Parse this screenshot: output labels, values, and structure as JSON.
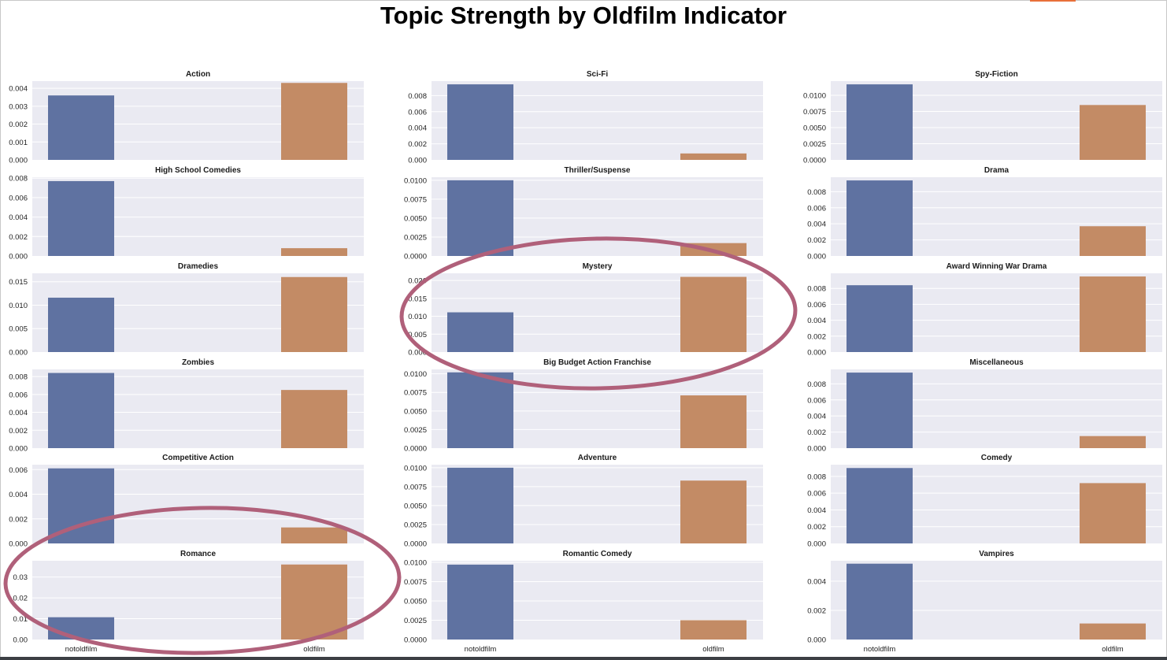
{
  "figure": {
    "title": "Topic Strength by Oldfilm Indicator"
  },
  "colors": {
    "notoldfilm": "#5f72a1",
    "oldfilm": "#c38b65",
    "panel_bg": "#eaeaf2",
    "grid": "#ffffff",
    "annotation_ring": "#b0607a",
    "accent": "#e8703a"
  },
  "chart_data": [
    {
      "type": "bar",
      "title": "Action",
      "categories": [
        "notoldfilm",
        "oldfilm"
      ],
      "values": [
        0.0036,
        0.0043
      ],
      "yticks": [
        "0.000",
        "0.001",
        "0.002",
        "0.003",
        "0.004"
      ],
      "ylim": [
        0,
        0.0044
      ],
      "grid": true
    },
    {
      "type": "bar",
      "title": "Sci-Fi",
      "categories": [
        "notoldfilm",
        "oldfilm"
      ],
      "values": [
        0.0094,
        0.0008
      ],
      "yticks": [
        "0.000",
        "0.002",
        "0.004",
        "0.006",
        "0.008"
      ],
      "ylim": [
        0,
        0.0098
      ],
      "grid": true
    },
    {
      "type": "bar",
      "title": "Spy-Fiction",
      "categories": [
        "notoldfilm",
        "oldfilm"
      ],
      "values": [
        0.0117,
        0.0085
      ],
      "yticks": [
        "0.0000",
        "0.0025",
        "0.0050",
        "0.0075",
        "0.0100"
      ],
      "ylim": [
        0,
        0.0122
      ],
      "grid": true
    },
    {
      "type": "bar",
      "title": "High School Comedies",
      "categories": [
        "notoldfilm",
        "oldfilm"
      ],
      "values": [
        0.0077,
        0.0008
      ],
      "yticks": [
        "0.000",
        "0.002",
        "0.004",
        "0.006",
        "0.008"
      ],
      "ylim": [
        0,
        0.0081
      ],
      "grid": true
    },
    {
      "type": "bar",
      "title": "Thriller/Suspense",
      "categories": [
        "notoldfilm",
        "oldfilm"
      ],
      "values": [
        0.01,
        0.0017
      ],
      "yticks": [
        "0.0000",
        "0.0025",
        "0.0050",
        "0.0075",
        "0.0100"
      ],
      "ylim": [
        0,
        0.0104
      ],
      "grid": true
    },
    {
      "type": "bar",
      "title": "Drama",
      "categories": [
        "notoldfilm",
        "oldfilm"
      ],
      "values": [
        0.0094,
        0.0037
      ],
      "yticks": [
        "0.000",
        "0.002",
        "0.004",
        "0.006",
        "0.008"
      ],
      "ylim": [
        0,
        0.0098
      ],
      "grid": true
    },
    {
      "type": "bar",
      "title": "Dramedies",
      "categories": [
        "notoldfilm",
        "oldfilm"
      ],
      "values": [
        0.0116,
        0.016
      ],
      "yticks": [
        "0.000",
        "0.005",
        "0.010",
        "0.015"
      ],
      "ylim": [
        0,
        0.0168
      ],
      "grid": true
    },
    {
      "type": "bar",
      "title": "Mystery",
      "categories": [
        "notoldfilm",
        "oldfilm"
      ],
      "values": [
        0.0111,
        0.021
      ],
      "yticks": [
        "0.000",
        "0.005",
        "0.010",
        "0.015",
        "0.020"
      ],
      "ylim": [
        0,
        0.022
      ],
      "grid": true
    },
    {
      "type": "bar",
      "title": "Award Winning War Drama",
      "categories": [
        "notoldfilm",
        "oldfilm"
      ],
      "values": [
        0.0084,
        0.0095
      ],
      "yticks": [
        "0.000",
        "0.002",
        "0.004",
        "0.006",
        "0.008"
      ],
      "ylim": [
        0,
        0.0099
      ],
      "grid": true
    },
    {
      "type": "bar",
      "title": "Zombies",
      "categories": [
        "notoldfilm",
        "oldfilm"
      ],
      "values": [
        0.0084,
        0.0065
      ],
      "yticks": [
        "0.000",
        "0.002",
        "0.004",
        "0.006",
        "0.008"
      ],
      "ylim": [
        0,
        0.0088
      ],
      "grid": true
    },
    {
      "type": "bar",
      "title": "Big Budget Action Franchise",
      "categories": [
        "notoldfilm",
        "oldfilm"
      ],
      "values": [
        0.0102,
        0.0071
      ],
      "yticks": [
        "0.0000",
        "0.0025",
        "0.0050",
        "0.0075",
        "0.0100"
      ],
      "ylim": [
        0,
        0.0106
      ],
      "grid": true
    },
    {
      "type": "bar",
      "title": "Miscellaneous",
      "categories": [
        "notoldfilm",
        "oldfilm"
      ],
      "values": [
        0.0094,
        0.0015
      ],
      "yticks": [
        "0.000",
        "0.002",
        "0.004",
        "0.006",
        "0.008"
      ],
      "ylim": [
        0,
        0.0098
      ],
      "grid": true
    },
    {
      "type": "bar",
      "title": "Competitive Action",
      "categories": [
        "notoldfilm",
        "oldfilm"
      ],
      "values": [
        0.0061,
        0.0013
      ],
      "yticks": [
        "0.000",
        "0.002",
        "0.004",
        "0.006"
      ],
      "ylim": [
        0,
        0.0064
      ],
      "grid": true
    },
    {
      "type": "bar",
      "title": "Adventure",
      "categories": [
        "notoldfilm",
        "oldfilm"
      ],
      "values": [
        0.01,
        0.0083
      ],
      "yticks": [
        "0.0000",
        "0.0025",
        "0.0050",
        "0.0075",
        "0.0100"
      ],
      "ylim": [
        0,
        0.0104
      ],
      "grid": true
    },
    {
      "type": "bar",
      "title": "Comedy",
      "categories": [
        "notoldfilm",
        "oldfilm"
      ],
      "values": [
        0.009,
        0.0072
      ],
      "yticks": [
        "0.000",
        "0.002",
        "0.004",
        "0.006",
        "0.008"
      ],
      "ylim": [
        0,
        0.0094
      ],
      "grid": true
    },
    {
      "type": "bar",
      "title": "Romance",
      "categories": [
        "notoldfilm",
        "oldfilm"
      ],
      "values": [
        0.0107,
        0.036
      ],
      "yticks": [
        "0.00",
        "0.01",
        "0.02",
        "0.03"
      ],
      "ylim": [
        0,
        0.0378
      ],
      "grid": true
    },
    {
      "type": "bar",
      "title": "Romantic Comedy",
      "categories": [
        "notoldfilm",
        "oldfilm"
      ],
      "values": [
        0.0097,
        0.0025
      ],
      "yticks": [
        "0.0000",
        "0.0025",
        "0.0050",
        "0.0075",
        "0.0100"
      ],
      "ylim": [
        0,
        0.0102
      ],
      "grid": true
    },
    {
      "type": "bar",
      "title": "Vampires",
      "categories": [
        "notoldfilm",
        "oldfilm"
      ],
      "values": [
        0.0052,
        0.0011
      ],
      "yticks": [
        "0.000",
        "0.002",
        "0.004"
      ],
      "ylim": [
        0,
        0.0054
      ],
      "grid": true
    }
  ]
}
